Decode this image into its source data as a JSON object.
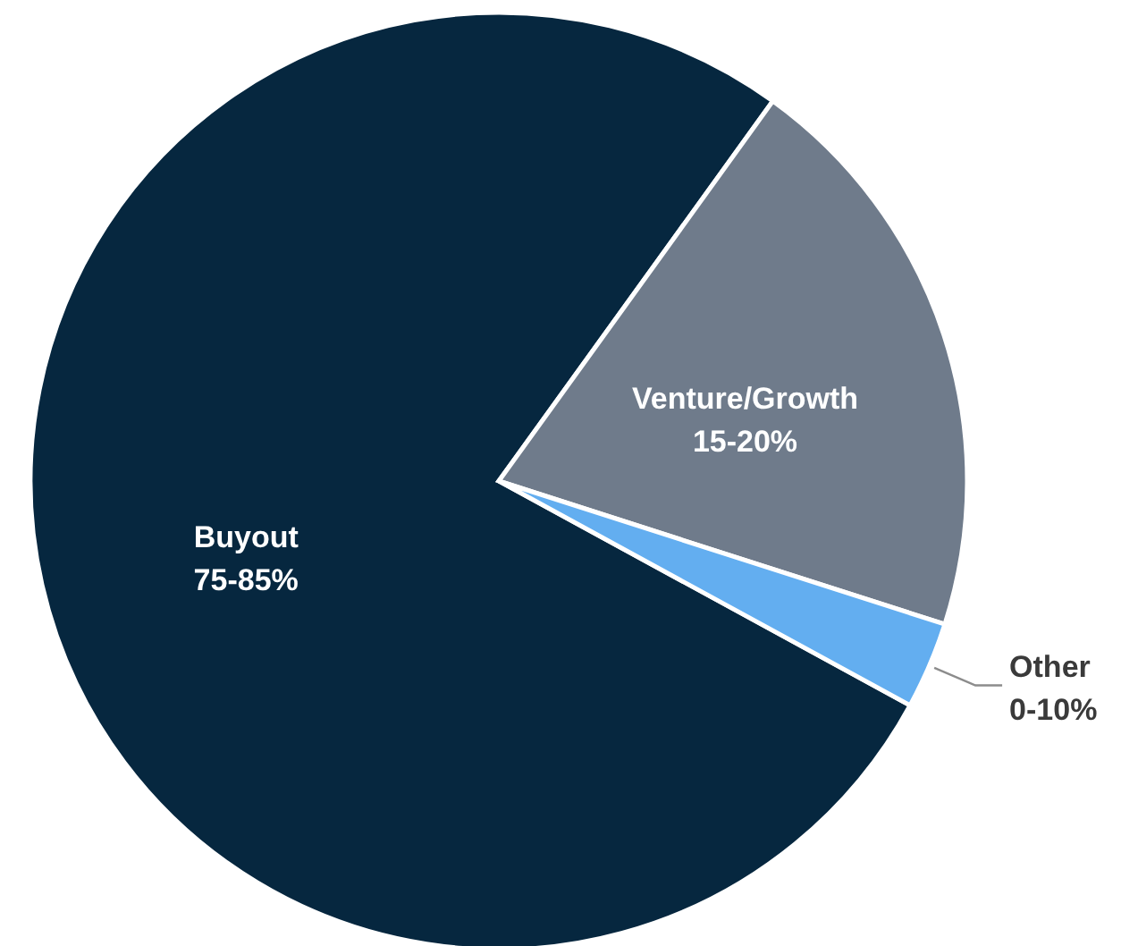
{
  "chart_data": {
    "type": "pie",
    "categories": [
      "Buyout",
      "Venture/Growth",
      "Other"
    ],
    "values": [
      77,
      20,
      3
    ],
    "colors": [
      "#06273f",
      "#6f7b8b",
      "#63aef0"
    ],
    "annotations": [
      "75-85%",
      "15-20%",
      "0-10%"
    ]
  }
}
